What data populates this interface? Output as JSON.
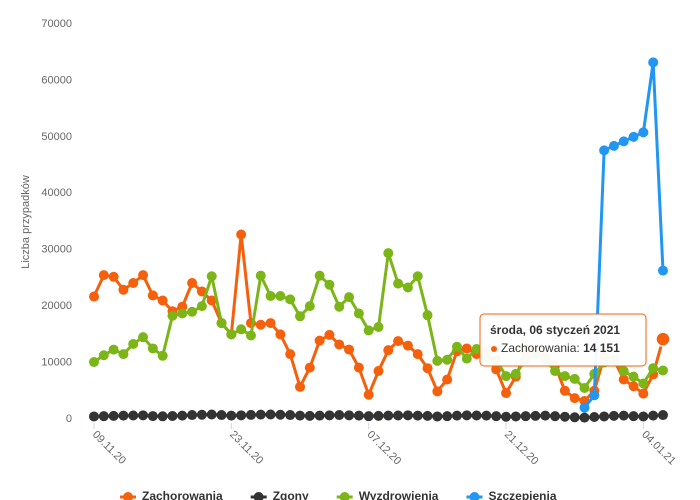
{
  "chart_data": {
    "type": "line",
    "y_label": "Liczba przypadków",
    "categories": [
      "09.11.20",
      null,
      null,
      null,
      null,
      null,
      null,
      null,
      null,
      null,
      null,
      null,
      null,
      null,
      "23.11.20",
      null,
      null,
      null,
      null,
      null,
      null,
      null,
      null,
      null,
      null,
      null,
      null,
      null,
      "07.12.20",
      null,
      null,
      null,
      null,
      null,
      null,
      null,
      null,
      null,
      null,
      null,
      null,
      null,
      "21.12.20",
      null,
      null,
      null,
      null,
      null,
      null,
      null,
      null,
      null,
      null,
      null,
      null,
      null,
      "04.01.21",
      null,
      null
    ],
    "ylim": [
      0,
      70000
    ],
    "yticks": [
      0,
      10000,
      20000,
      30000,
      40000,
      50000,
      60000,
      70000
    ],
    "grid": false,
    "legend": "bottom",
    "series": [
      {
        "name": "Zachorowania",
        "color": "#f4600c",
        "values": [
          21700,
          25500,
          25200,
          22900,
          24100,
          25500,
          21900,
          21000,
          19100,
          19900,
          24100,
          22600,
          21000,
          17000,
          15000,
          32700,
          17000,
          16700,
          17000,
          15000,
          11500,
          5700,
          9100,
          13900,
          14900,
          13200,
          12300,
          9100,
          4300,
          8500,
          12200,
          13800,
          13000,
          11500,
          9000,
          4900,
          7000,
          12000,
          12500,
          11500,
          12000,
          8800,
          4600,
          7500,
          12000,
          12000,
          11000,
          9500,
          5000,
          3700,
          3200,
          5000,
          11000,
          10500,
          7000,
          5800,
          4500,
          7900,
          14151
        ]
      },
      {
        "name": "Zgony",
        "color": "#333333",
        "values": [
          450,
          500,
          550,
          600,
          620,
          650,
          520,
          480,
          540,
          600,
          700,
          750,
          800,
          700,
          600,
          650,
          720,
          780,
          800,
          750,
          700,
          600,
          550,
          600,
          650,
          700,
          650,
          600,
          500,
          550,
          600,
          620,
          650,
          600,
          550,
          450,
          500,
          600,
          650,
          620,
          600,
          500,
          400,
          450,
          500,
          550,
          600,
          500,
          400,
          300,
          250,
          350,
          450,
          550,
          600,
          500,
          450,
          600,
          700
        ]
      },
      {
        "name": "Wyzdrowienia",
        "color": "#7cb518",
        "values": [
          10100,
          11300,
          12300,
          11500,
          13300,
          14500,
          12500,
          11200,
          18300,
          18700,
          19000,
          20000,
          25300,
          17000,
          15000,
          15900,
          14800,
          25400,
          21800,
          21800,
          21200,
          18200,
          20000,
          25400,
          23800,
          19900,
          21600,
          18700,
          15700,
          16300,
          29400,
          24000,
          23300,
          25300,
          18400,
          10300,
          10500,
          12800,
          10700,
          12400,
          11000,
          10500,
          7600,
          8000,
          10500,
          11500,
          10500,
          8500,
          7600,
          7100,
          5500,
          8000,
          10000,
          10500,
          8500,
          7500,
          6300,
          9000,
          8600
        ]
      },
      {
        "name": "Szczepienia",
        "color": "#2196f3",
        "values": [
          null,
          null,
          null,
          null,
          null,
          null,
          null,
          null,
          null,
          null,
          null,
          null,
          null,
          null,
          null,
          null,
          null,
          null,
          null,
          null,
          null,
          null,
          null,
          null,
          null,
          null,
          null,
          null,
          null,
          null,
          null,
          null,
          null,
          null,
          null,
          null,
          null,
          null,
          null,
          null,
          null,
          null,
          null,
          null,
          null,
          null,
          null,
          null,
          null,
          null,
          2000,
          4200,
          47600,
          48400,
          49200,
          50000,
          50800,
          63200,
          26300
        ]
      }
    ],
    "tooltip": {
      "title": "środa, 06 styczeń 2021",
      "label": "Zachorowania:",
      "value_label": "14 151"
    }
  }
}
